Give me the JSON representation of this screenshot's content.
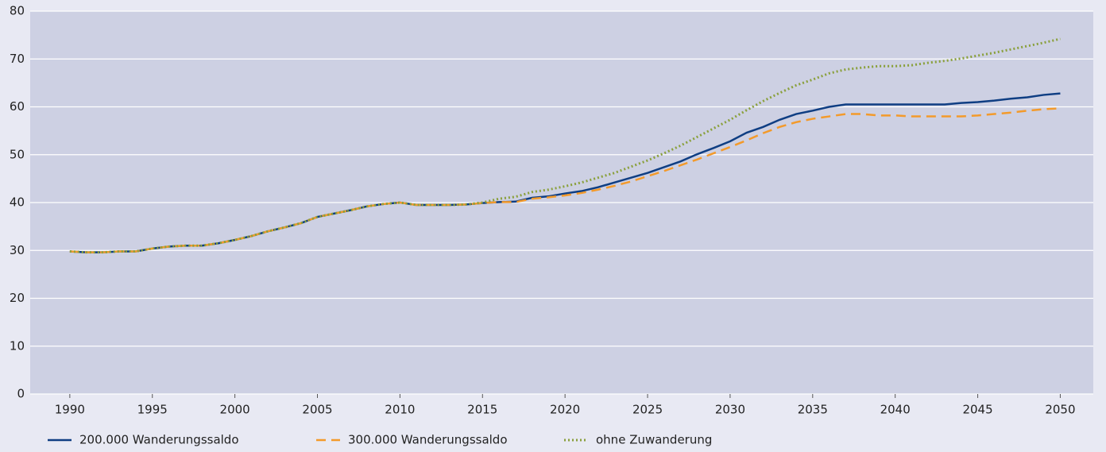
{
  "chart_data": {
    "type": "line",
    "x": [
      1990,
      1991,
      1992,
      1993,
      1994,
      1995,
      1996,
      1997,
      1998,
      1999,
      2000,
      2001,
      2002,
      2003,
      2004,
      2005,
      2006,
      2007,
      2008,
      2009,
      2010,
      2011,
      2012,
      2013,
      2014,
      2015,
      2016,
      2017,
      2018,
      2019,
      2020,
      2021,
      2022,
      2023,
      2024,
      2025,
      2026,
      2027,
      2028,
      2029,
      2030,
      2031,
      2032,
      2033,
      2034,
      2035,
      2036,
      2037,
      2038,
      2039,
      2040,
      2041,
      2042,
      2043,
      2044,
      2045,
      2046,
      2047,
      2048,
      2049,
      2050
    ],
    "xlim": [
      1987.6,
      2052
    ],
    "xticks": [
      1990,
      1995,
      2000,
      2005,
      2010,
      2015,
      2020,
      2025,
      2030,
      2035,
      2040,
      2045,
      2050
    ],
    "ylim": [
      0,
      80
    ],
    "yticks": [
      0,
      10,
      20,
      30,
      40,
      50,
      60,
      70,
      80
    ],
    "grid": true,
    "legend": "bottom",
    "series": [
      {
        "name": "200.000 Wanderungssaldo",
        "color": "#0f3e83",
        "dash": "solid",
        "values": [
          29.8,
          29.6,
          29.6,
          29.8,
          29.8,
          30.4,
          30.8,
          31.0,
          31.0,
          31.5,
          32.2,
          33.0,
          34.0,
          34.8,
          35.7,
          37.0,
          37.7,
          38.4,
          39.2,
          39.7,
          40.0,
          39.5,
          39.5,
          39.5,
          39.6,
          39.9,
          40.1,
          40.2,
          41.0,
          41.3,
          41.9,
          42.4,
          43.2,
          44.2,
          45.2,
          46.2,
          47.4,
          48.6,
          50.1,
          51.4,
          52.8,
          54.6,
          55.8,
          57.3,
          58.5,
          59.2,
          60.0,
          60.5,
          60.5,
          60.5,
          60.5,
          60.5,
          60.5,
          60.5,
          60.8,
          61.0,
          61.3,
          61.7,
          62.0,
          62.5,
          62.8
        ]
      },
      {
        "name": "300.000 Wanderungssaldo",
        "color": "#f39a2b",
        "dash": "dashed",
        "values": [
          29.8,
          29.6,
          29.6,
          29.8,
          29.8,
          30.4,
          30.8,
          31.0,
          31.0,
          31.5,
          32.2,
          33.0,
          34.0,
          34.8,
          35.7,
          37.0,
          37.7,
          38.4,
          39.2,
          39.7,
          40.0,
          39.5,
          39.5,
          39.5,
          39.6,
          39.9,
          40.1,
          40.1,
          40.8,
          41.1,
          41.5,
          42.0,
          42.7,
          43.5,
          44.4,
          45.5,
          46.6,
          47.8,
          49.0,
          50.3,
          51.6,
          53.0,
          54.5,
          55.8,
          56.8,
          57.5,
          58.0,
          58.5,
          58.5,
          58.2,
          58.2,
          58.0,
          58.0,
          58.0,
          58.0,
          58.2,
          58.5,
          58.8,
          59.2,
          59.5,
          59.7
        ]
      },
      {
        "name": "ohne Zuwanderung",
        "color": "#8aa03c",
        "dash": "dotted",
        "values": [
          29.8,
          29.6,
          29.6,
          29.8,
          29.8,
          30.4,
          30.8,
          31.0,
          31.0,
          31.5,
          32.2,
          33.0,
          34.0,
          34.8,
          35.7,
          37.0,
          37.7,
          38.4,
          39.2,
          39.7,
          40.0,
          39.5,
          39.5,
          39.5,
          39.6,
          40.0,
          40.8,
          41.2,
          42.2,
          42.7,
          43.4,
          44.2,
          45.2,
          46.2,
          47.5,
          48.8,
          50.3,
          51.9,
          53.7,
          55.5,
          57.3,
          59.3,
          61.2,
          62.9,
          64.5,
          65.7,
          67.0,
          67.8,
          68.2,
          68.5,
          68.5,
          68.7,
          69.2,
          69.6,
          70.1,
          70.7,
          71.3,
          72.0,
          72.7,
          73.4,
          74.2
        ]
      }
    ]
  }
}
